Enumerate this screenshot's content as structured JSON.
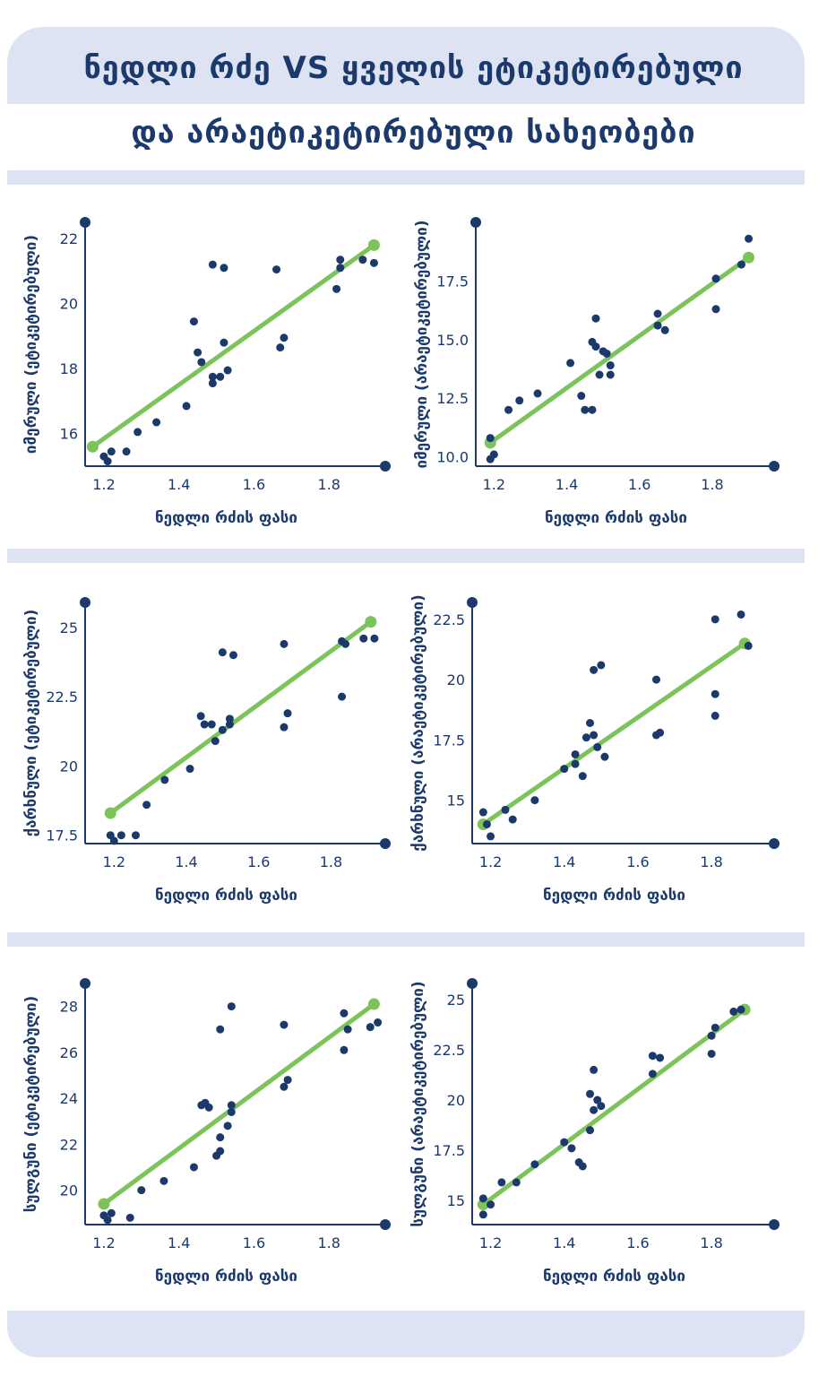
{
  "header": {
    "title_line1": "ნედლი რძე VS ყველის ეტიკეტირებული",
    "title_line2": "და არაეტიკეტირებული სახეობები"
  },
  "colors": {
    "navy": "#1b3a6b",
    "green": "#7cc35a",
    "band": "#dde3f3"
  },
  "chart_data": [
    {
      "type": "scatter",
      "xlabel": "ნედლი რძის ფასი",
      "ylabel": "იმერული (ეტიკეტირებული)",
      "xlim": [
        1.15,
        1.95
      ],
      "ylim": [
        15.0,
        22.5
      ],
      "xticks": [
        1.2,
        1.4,
        1.6,
        1.8
      ],
      "yticks": [
        16,
        18,
        20,
        22
      ],
      "trend": [
        [
          1.17,
          15.6
        ],
        [
          1.92,
          21.8
        ]
      ],
      "points": [
        [
          1.2,
          15.3
        ],
        [
          1.21,
          15.15
        ],
        [
          1.22,
          15.45
        ],
        [
          1.26,
          15.45
        ],
        [
          1.29,
          16.05
        ],
        [
          1.34,
          16.35
        ],
        [
          1.42,
          16.85
        ],
        [
          1.44,
          19.45
        ],
        [
          1.45,
          18.5
        ],
        [
          1.46,
          18.2
        ],
        [
          1.49,
          17.55
        ],
        [
          1.49,
          17.75
        ],
        [
          1.49,
          21.2
        ],
        [
          1.51,
          17.75
        ],
        [
          1.52,
          18.8
        ],
        [
          1.52,
          21.1
        ],
        [
          1.53,
          17.95
        ],
        [
          1.66,
          21.05
        ],
        [
          1.67,
          18.65
        ],
        [
          1.68,
          18.95
        ],
        [
          1.82,
          20.45
        ],
        [
          1.83,
          21.1
        ],
        [
          1.83,
          21.35
        ],
        [
          1.89,
          21.35
        ],
        [
          1.92,
          21.25
        ]
      ]
    },
    {
      "type": "scatter",
      "xlabel": "ნედლი რძის ფასი",
      "ylabel": "იმერული (არაეტიკეტირებული)",
      "xlim": [
        1.15,
        1.97
      ],
      "ylim": [
        9.6,
        20.0
      ],
      "xticks": [
        1.2,
        1.4,
        1.6,
        1.8
      ],
      "yticks": [
        10.0,
        12.5,
        15.0,
        17.5
      ],
      "trend": [
        [
          1.19,
          10.6
        ],
        [
          1.9,
          18.5
        ]
      ],
      "points": [
        [
          1.19,
          10.8
        ],
        [
          1.19,
          9.9
        ],
        [
          1.2,
          10.1
        ],
        [
          1.24,
          12.0
        ],
        [
          1.27,
          12.4
        ],
        [
          1.32,
          12.7
        ],
        [
          1.41,
          14.0
        ],
        [
          1.44,
          12.6
        ],
        [
          1.45,
          12.0
        ],
        [
          1.47,
          12.0
        ],
        [
          1.47,
          14.9
        ],
        [
          1.48,
          14.7
        ],
        [
          1.48,
          15.9
        ],
        [
          1.49,
          13.5
        ],
        [
          1.5,
          14.5
        ],
        [
          1.51,
          14.4
        ],
        [
          1.52,
          13.9
        ],
        [
          1.52,
          13.5
        ],
        [
          1.65,
          16.1
        ],
        [
          1.65,
          15.6
        ],
        [
          1.67,
          15.4
        ],
        [
          1.81,
          16.3
        ],
        [
          1.81,
          17.6
        ],
        [
          1.88,
          18.2
        ],
        [
          1.9,
          19.3
        ]
      ]
    },
    {
      "type": "scatter",
      "xlabel": "ნედლი რძის ფასი",
      "ylabel": "ქარხნული (ეტიკეტირებული)",
      "xlim": [
        1.12,
        1.95
      ],
      "ylim": [
        17.2,
        25.9
      ],
      "xticks": [
        1.2,
        1.4,
        1.6,
        1.8
      ],
      "yticks": [
        17.5,
        20,
        22.5,
        25
      ],
      "trend": [
        [
          1.19,
          18.3
        ],
        [
          1.91,
          25.2
        ]
      ],
      "points": [
        [
          1.19,
          17.5
        ],
        [
          1.2,
          17.3
        ],
        [
          1.22,
          17.5
        ],
        [
          1.26,
          17.5
        ],
        [
          1.29,
          18.6
        ],
        [
          1.34,
          19.5
        ],
        [
          1.41,
          19.9
        ],
        [
          1.44,
          21.8
        ],
        [
          1.45,
          21.5
        ],
        [
          1.47,
          21.5
        ],
        [
          1.48,
          20.9
        ],
        [
          1.5,
          24.1
        ],
        [
          1.5,
          21.3
        ],
        [
          1.52,
          21.5
        ],
        [
          1.52,
          21.7
        ],
        [
          1.53,
          24.0
        ],
        [
          1.67,
          24.4
        ],
        [
          1.67,
          21.4
        ],
        [
          1.68,
          21.9
        ],
        [
          1.83,
          22.5
        ],
        [
          1.83,
          24.5
        ],
        [
          1.84,
          24.4
        ],
        [
          1.89,
          24.6
        ],
        [
          1.92,
          24.6
        ]
      ]
    },
    {
      "type": "scatter",
      "xlabel": "ნედლი რძის ფასი",
      "ylabel": "ქარხნული (არაეტიკეტირებული)",
      "xlim": [
        1.15,
        1.97
      ],
      "ylim": [
        13.2,
        23.2
      ],
      "xticks": [
        1.2,
        1.4,
        1.6,
        1.8
      ],
      "yticks": [
        15,
        17.5,
        20,
        22.5
      ],
      "trend": [
        [
          1.18,
          14.0
        ],
        [
          1.89,
          21.5
        ]
      ],
      "points": [
        [
          1.18,
          14.5
        ],
        [
          1.19,
          14.0
        ],
        [
          1.2,
          13.5
        ],
        [
          1.24,
          14.6
        ],
        [
          1.26,
          14.2
        ],
        [
          1.32,
          15.0
        ],
        [
          1.4,
          16.3
        ],
        [
          1.43,
          16.5
        ],
        [
          1.43,
          16.9
        ],
        [
          1.45,
          16.0
        ],
        [
          1.46,
          17.6
        ],
        [
          1.47,
          18.2
        ],
        [
          1.48,
          17.7
        ],
        [
          1.48,
          20.4
        ],
        [
          1.49,
          17.2
        ],
        [
          1.5,
          20.6
        ],
        [
          1.51,
          16.8
        ],
        [
          1.65,
          20.0
        ],
        [
          1.65,
          17.7
        ],
        [
          1.66,
          17.8
        ],
        [
          1.81,
          18.5
        ],
        [
          1.81,
          19.4
        ],
        [
          1.81,
          22.5
        ],
        [
          1.88,
          22.7
        ],
        [
          1.9,
          21.4
        ]
      ]
    },
    {
      "type": "scatter",
      "xlabel": "ნედლი რძის ფასი",
      "ylabel": "სულგუნი (ეტიკეტირებული)",
      "xlim": [
        1.15,
        1.95
      ],
      "ylim": [
        18.5,
        29.0
      ],
      "xticks": [
        1.2,
        1.4,
        1.6,
        1.8
      ],
      "yticks": [
        20,
        22,
        24,
        26,
        28
      ],
      "trend": [
        [
          1.2,
          19.4
        ],
        [
          1.92,
          28.1
        ]
      ],
      "points": [
        [
          1.2,
          18.9
        ],
        [
          1.21,
          18.7
        ],
        [
          1.22,
          19.0
        ],
        [
          1.27,
          18.8
        ],
        [
          1.3,
          20.0
        ],
        [
          1.36,
          20.4
        ],
        [
          1.44,
          21.0
        ],
        [
          1.46,
          23.7
        ],
        [
          1.47,
          23.8
        ],
        [
          1.48,
          23.6
        ],
        [
          1.5,
          21.5
        ],
        [
          1.51,
          22.3
        ],
        [
          1.51,
          21.7
        ],
        [
          1.51,
          27.0
        ],
        [
          1.53,
          22.8
        ],
        [
          1.54,
          23.4
        ],
        [
          1.54,
          23.7
        ],
        [
          1.54,
          28.0
        ],
        [
          1.68,
          27.2
        ],
        [
          1.68,
          24.5
        ],
        [
          1.69,
          24.8
        ],
        [
          1.84,
          26.1
        ],
        [
          1.84,
          27.7
        ],
        [
          1.85,
          27.0
        ],
        [
          1.91,
          27.1
        ],
        [
          1.93,
          27.3
        ]
      ]
    },
    {
      "type": "scatter",
      "xlabel": "ნედლი რძის ფასი",
      "ylabel": "სულგუნი (არაეტიკეტირებული)",
      "xlim": [
        1.15,
        1.97
      ],
      "ylim": [
        13.8,
        25.8
      ],
      "xticks": [
        1.2,
        1.4,
        1.6,
        1.8
      ],
      "yticks": [
        15,
        17.5,
        20,
        22.5,
        25
      ],
      "trend": [
        [
          1.18,
          14.8
        ],
        [
          1.89,
          24.5
        ]
      ],
      "points": [
        [
          1.18,
          15.1
        ],
        [
          1.18,
          14.3
        ],
        [
          1.2,
          14.8
        ],
        [
          1.23,
          15.9
        ],
        [
          1.27,
          15.9
        ],
        [
          1.32,
          16.8
        ],
        [
          1.4,
          17.9
        ],
        [
          1.42,
          17.6
        ],
        [
          1.44,
          16.9
        ],
        [
          1.45,
          16.7
        ],
        [
          1.47,
          18.5
        ],
        [
          1.47,
          20.3
        ],
        [
          1.48,
          21.5
        ],
        [
          1.48,
          19.5
        ],
        [
          1.49,
          20.0
        ],
        [
          1.5,
          19.7
        ],
        [
          1.64,
          21.3
        ],
        [
          1.64,
          22.2
        ],
        [
          1.66,
          22.1
        ],
        [
          1.8,
          22.3
        ],
        [
          1.8,
          23.2
        ],
        [
          1.81,
          23.6
        ],
        [
          1.86,
          24.4
        ],
        [
          1.88,
          24.5
        ]
      ]
    }
  ]
}
